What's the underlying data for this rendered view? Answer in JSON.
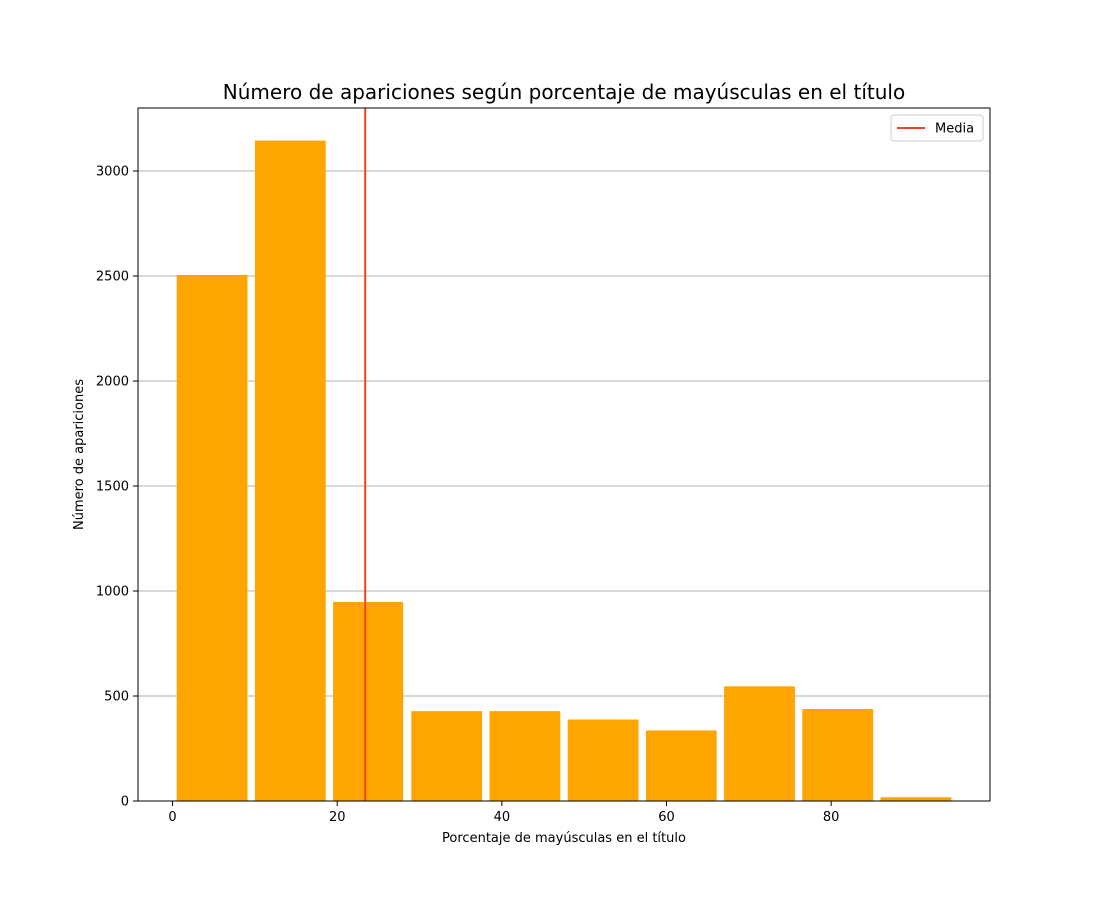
{
  "chart_data": {
    "type": "bar",
    "title": "Número de apariciones según porcentaje de mayúsculas en el título",
    "xlabel": "Porcentaje de mayúsculas en el título",
    "ylabel": "Número de apariciones",
    "bins": [
      {
        "x0": 0.5,
        "x1": 9.1,
        "value": 2505
      },
      {
        "x0": 10.0,
        "x1": 18.6,
        "value": 3145
      },
      {
        "x0": 19.5,
        "x1": 28.0,
        "value": 948
      },
      {
        "x0": 29.0,
        "x1": 37.6,
        "value": 428
      },
      {
        "x0": 38.5,
        "x1": 47.1,
        "value": 428
      },
      {
        "x0": 48.0,
        "x1": 56.6,
        "value": 388
      },
      {
        "x0": 57.5,
        "x1": 66.1,
        "value": 336
      },
      {
        "x0": 67.0,
        "x1": 75.6,
        "value": 546
      },
      {
        "x0": 76.5,
        "x1": 85.1,
        "value": 438
      },
      {
        "x0": 86.0,
        "x1": 94.6,
        "value": 18
      }
    ],
    "mean": 23.4,
    "xlim": [
      -4.2,
      99.3
    ],
    "ylim": [
      0,
      3300
    ],
    "xticks": [
      0,
      20,
      40,
      60,
      80
    ],
    "yticks": [
      0,
      500,
      1000,
      1500,
      2000,
      2500,
      3000
    ],
    "grid": "y",
    "legend": {
      "position": "top-right",
      "entries": [
        {
          "label": "Media",
          "color": "#ee4422"
        }
      ]
    },
    "colors": {
      "bar": "#ffa500",
      "mean_line": "#ee4422",
      "grid": "#b0b0b0"
    }
  }
}
